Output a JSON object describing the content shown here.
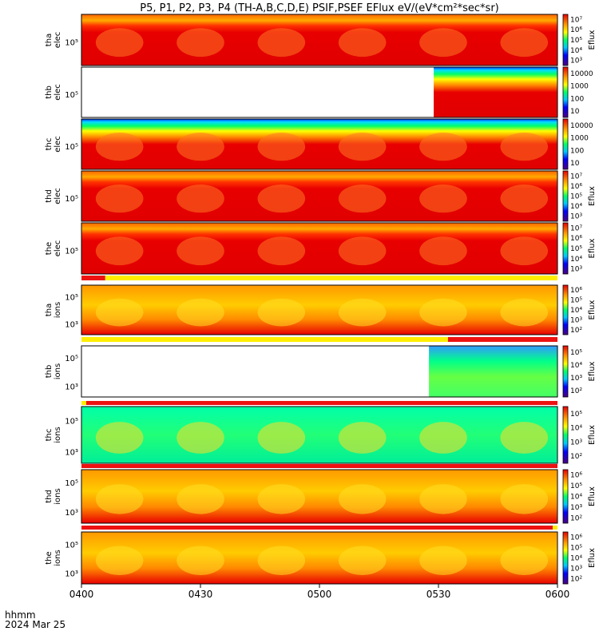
{
  "title": "P5, P1, P2, P3, P4  (TH-A,B,C,D,E) PSIF,PSEF EFlux eV/(eV*cm²*sec*sr)",
  "footer": {
    "time_label": "hhmm",
    "date_label": "2024 Mar 25"
  },
  "colors": {
    "bar_red": "#ee1111",
    "bar_yellow": "#ffee00",
    "bar_black": "#000000"
  },
  "chart_data": {
    "type": "heatmap",
    "x_range": [
      "0400",
      "0600"
    ],
    "x_ticks": [
      "0400",
      "0430",
      "0500",
      "0530",
      "0600"
    ],
    "panels": [
      {
        "ylabel": [
          "tha",
          "elec"
        ],
        "ytick": "10⁵",
        "cbar_label": "Eflux",
        "cbar_ticks": [
          "10³",
          "10⁴",
          "10⁵",
          "10⁶",
          "10⁷"
        ],
        "data_start": 0.0
      },
      {
        "ylabel": [
          "thb",
          "elec"
        ],
        "ytick": "10⁵",
        "cbar_label": "",
        "cbar_ticks": [
          "10",
          "100",
          "1000",
          "10000"
        ],
        "data_start": 0.74
      },
      {
        "ylabel": [
          "thc",
          "elec"
        ],
        "ytick": "10⁵",
        "cbar_label": "",
        "cbar_ticks": [
          "10",
          "100",
          "1000",
          "10000"
        ],
        "data_start": 0.0
      },
      {
        "ylabel": [
          "thd",
          "elec"
        ],
        "ytick": "10⁵",
        "cbar_label": "Eflux",
        "cbar_ticks": [
          "10³",
          "10⁴",
          "10⁵",
          "10⁶",
          "10⁷"
        ],
        "data_start": 0.0
      },
      {
        "ylabel": [
          "the",
          "elec"
        ],
        "ytick": "10⁵",
        "cbar_label": "Eflux",
        "cbar_ticks": [
          "10³",
          "10⁴",
          "10⁵",
          "10⁶",
          "10⁷"
        ],
        "data_start": 0.0
      },
      {
        "ylabel": [
          "tha",
          "ions"
        ],
        "ytick": "10⁵",
        "ytick2": "10³",
        "cbar_label": "Eflux",
        "cbar_ticks": [
          "10²",
          "10³",
          "10⁴",
          "10⁵",
          "10⁶"
        ],
        "data_start": 0.0
      },
      {
        "ylabel": [
          "thb",
          "ions"
        ],
        "ytick": "10⁵",
        "ytick2": "10³",
        "cbar_label": "Eflux",
        "cbar_ticks": [
          "10²",
          "10³",
          "10⁴",
          "10⁵"
        ],
        "data_start": 0.73
      },
      {
        "ylabel": [
          "thc",
          "ions"
        ],
        "ytick": "10⁵",
        "ytick2": "10³",
        "cbar_label": "Eflux",
        "cbar_ticks": [
          "10²",
          "10³",
          "10⁴",
          "10⁵"
        ],
        "data_start": 0.0
      },
      {
        "ylabel": [
          "thd",
          "ions"
        ],
        "ytick": "10⁵",
        "ytick2": "10³",
        "cbar_label": "Eflux",
        "cbar_ticks": [
          "10²",
          "10³",
          "10⁴",
          "10⁵",
          "10⁶"
        ],
        "data_start": 0.0
      },
      {
        "ylabel": [
          "the",
          "ions"
        ],
        "ytick": "10⁵",
        "ytick2": "10³",
        "cbar_label": "Eflux",
        "cbar_ticks": [
          "10²",
          "10³",
          "10⁴",
          "10⁵",
          "10⁶"
        ],
        "data_start": 0.0
      }
    ]
  }
}
